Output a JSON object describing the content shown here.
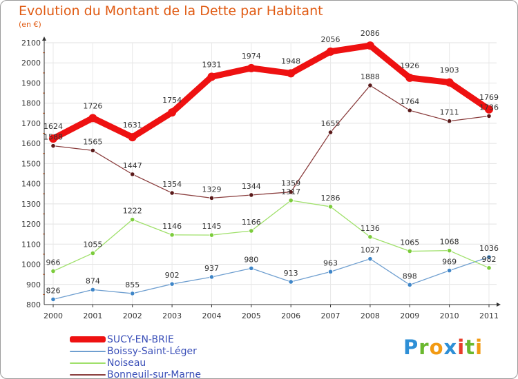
{
  "title": "Evolution du Montant de la Dette par Habitant",
  "subtitle": "(en €)",
  "logo": {
    "letters": [
      "P",
      "r",
      "o",
      "x",
      "i",
      "t",
      "i"
    ],
    "colors": [
      "#2e8fd6",
      "#6ab82e",
      "#f29a12",
      "#2e8fd6",
      "#e83c2a",
      "#6ab82e",
      "#f29a12"
    ]
  },
  "chart_data": {
    "type": "line",
    "categories": [
      "2000",
      "2001",
      "2002",
      "2003",
      "2004",
      "2005",
      "2006",
      "2007",
      "2008",
      "2009",
      "2010",
      "2011"
    ],
    "ylim": [
      800,
      2100
    ],
    "yticks": [
      "800",
      "900",
      "1000",
      "1100",
      "1200",
      "1300",
      "1400",
      "1500",
      "1600",
      "1700",
      "1800",
      "1900",
      "2000",
      "2100"
    ],
    "grid": true,
    "legend_position": "bottom-left",
    "series": [
      {
        "name": "SUCY-EN-BRIE",
        "color": "#ee1111",
        "values": [
          1624,
          1726,
          1631,
          1754,
          1931,
          1974,
          1948,
          2056,
          2086,
          1926,
          1903,
          1769
        ]
      },
      {
        "name": "Boissy-Saint-Léger",
        "color": "#6f9fd0",
        "values": [
          826,
          874,
          855,
          902,
          937,
          980,
          913,
          963,
          1027,
          898,
          969,
          1036
        ]
      },
      {
        "name": "Noiseau",
        "color": "#9fe06a",
        "values": [
          966,
          1055,
          1222,
          1146,
          1145,
          1166,
          1317,
          1286,
          1136,
          1065,
          1068,
          982
        ]
      },
      {
        "name": "Bonneuil-sur-Marne",
        "color": "#8a3d3d",
        "values": [
          1588,
          1565,
          1447,
          1354,
          1329,
          1344,
          1359,
          1655,
          1888,
          1764,
          1711,
          1736
        ]
      }
    ],
    "labels": [
      [
        "1624",
        "1726",
        "1631",
        "1754",
        "1931",
        "1974",
        "1948",
        "2056",
        "2086",
        "1926",
        "1903",
        "1769"
      ],
      [
        "826",
        "874",
        "855",
        "902",
        "937",
        "980",
        "913",
        "963",
        "1027",
        "898",
        "969",
        "1036"
      ],
      [
        "966",
        "1055",
        "1222",
        "1146",
        "1145",
        "1166",
        "1317",
        "1286",
        "1136",
        "1065",
        "1068",
        "982"
      ],
      [
        "1588",
        "1565",
        "1447",
        "1354",
        "1329",
        "1344",
        "1359",
        "1655",
        "1888",
        "1764",
        "1711",
        "1736"
      ]
    ]
  }
}
